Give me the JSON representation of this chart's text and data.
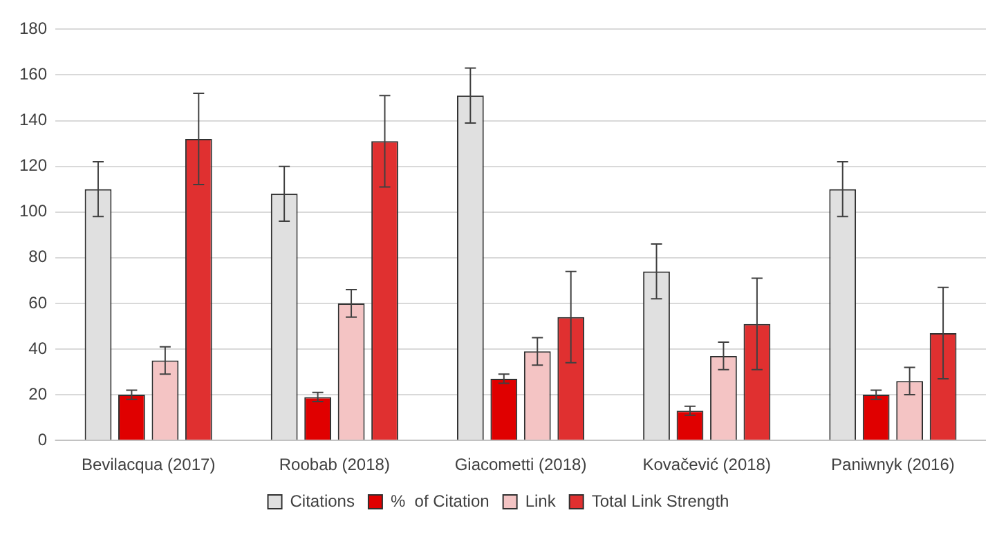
{
  "chart_data": {
    "type": "bar",
    "categories": [
      "Bevilacqua (2017)",
      "Roobab (2018)",
      "Giacometti (2018)",
      "Kovačević (2018)",
      "Paniwnyk (2016)"
    ],
    "series": [
      {
        "name": "Citations",
        "color": "#e0e0e0",
        "values": [
          110,
          108,
          151,
          74,
          110
        ],
        "errors": [
          12,
          12,
          12,
          12,
          12
        ]
      },
      {
        "name": "%  of Citation",
        "color": "#e00000",
        "values": [
          20,
          19,
          27,
          13,
          20
        ],
        "errors": [
          2,
          2,
          2,
          2,
          2
        ]
      },
      {
        "name": "Link",
        "color": "#f4c4c4",
        "values": [
          35,
          60,
          39,
          37,
          26
        ],
        "errors": [
          6,
          6,
          6,
          6,
          6
        ]
      },
      {
        "name": "Total Link Strength",
        "color": "#e03030",
        "values": [
          132,
          131,
          54,
          51,
          47
        ],
        "errors": [
          20,
          20,
          20,
          20,
          20
        ]
      }
    ],
    "ylim": [
      0,
      180
    ],
    "yticks": [
      0,
      20,
      40,
      60,
      80,
      100,
      120,
      140,
      160,
      180
    ],
    "grid": "y",
    "legend": "bottom"
  }
}
